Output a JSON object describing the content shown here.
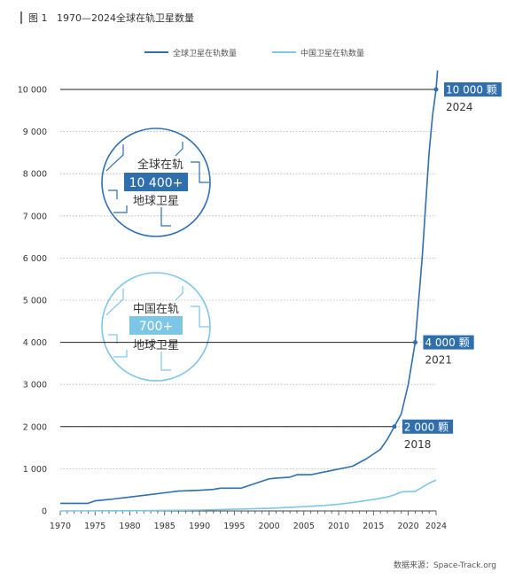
{
  "figure_label": "图 1",
  "title": "1970—2024全球在轨卫星数量",
  "source": "数据来源：Space-Track.org",
  "colors": {
    "global": "#2f6fad",
    "china": "#7ec6e6",
    "annotation_bg": "#2f6fad",
    "axis_text": "#333333",
    "grid": "#b0b0b0"
  },
  "chart_data": {
    "type": "line",
    "title": "1970—2024全球在轨卫星数量",
    "xlabel": "",
    "ylabel": "",
    "xlim": [
      1970,
      2024
    ],
    "ylim": [
      0,
      10500
    ],
    "x_ticks": [
      1970,
      1975,
      1980,
      1985,
      1990,
      1995,
      2000,
      2005,
      2010,
      2015,
      2020,
      2024
    ],
    "y_ticks": [
      0,
      1000,
      2000,
      3000,
      4000,
      5000,
      6000,
      7000,
      8000,
      9000,
      10000
    ],
    "y_tick_labels": [
      "0",
      "1 000",
      "2 000",
      "3 000",
      "4 000",
      "5 000",
      "6 000",
      "7 000",
      "8 000",
      "9 000",
      "10 000"
    ],
    "grid": "horizontal dotted",
    "legend_position": "top-center",
    "series": [
      {
        "name": "全球卫星在轨数量",
        "points": [
          [
            1970,
            180
          ],
          [
            1972,
            180
          ],
          [
            1974,
            180
          ],
          [
            1975,
            240
          ],
          [
            1977,
            270
          ],
          [
            1980,
            330
          ],
          [
            1983,
            390
          ],
          [
            1985,
            430
          ],
          [
            1987,
            470
          ],
          [
            1990,
            490
          ],
          [
            1992,
            510
          ],
          [
            1993,
            540
          ],
          [
            1996,
            540
          ],
          [
            2000,
            760
          ],
          [
            2001,
            780
          ],
          [
            2003,
            800
          ],
          [
            2004,
            860
          ],
          [
            2006,
            860
          ],
          [
            2009,
            960
          ],
          [
            2012,
            1060
          ],
          [
            2014,
            1240
          ],
          [
            2016,
            1460
          ],
          [
            2017,
            1700
          ],
          [
            2018,
            2000
          ],
          [
            2019,
            2300
          ],
          [
            2020,
            3000
          ],
          [
            2021,
            4000
          ],
          [
            2022,
            6000
          ],
          [
            2023,
            8500
          ],
          [
            2023.5,
            9400
          ],
          [
            2024,
            10000
          ],
          [
            2024.2,
            10450
          ]
        ]
      },
      {
        "name": "中国卫星在轨数量",
        "points": [
          [
            1970,
            0
          ],
          [
            1980,
            5
          ],
          [
            1990,
            20
          ],
          [
            2000,
            60
          ],
          [
            2005,
            100
          ],
          [
            2008,
            130
          ],
          [
            2010,
            160
          ],
          [
            2012,
            200
          ],
          [
            2015,
            270
          ],
          [
            2017,
            330
          ],
          [
            2018,
            380
          ],
          [
            2019,
            450
          ],
          [
            2020,
            460
          ],
          [
            2021,
            460
          ],
          [
            2022,
            560
          ],
          [
            2023,
            660
          ],
          [
            2024,
            730
          ]
        ]
      }
    ],
    "annotations": [
      {
        "label": "10 000 颗",
        "year_label": "2024",
        "x": 2024,
        "y": 10000
      },
      {
        "label": "4 000 颗",
        "year_label": "2021",
        "x": 2021,
        "y": 4000
      },
      {
        "label": "2 000 颗",
        "year_label": "2018",
        "x": 2018,
        "y": 2000
      }
    ]
  },
  "badges": {
    "global": {
      "line1": "全球在轨",
      "value": "10 400+",
      "line2": "地球卫星"
    },
    "china": {
      "line1": "中国在轨",
      "value": "700+",
      "line2": "地球卫星"
    }
  }
}
